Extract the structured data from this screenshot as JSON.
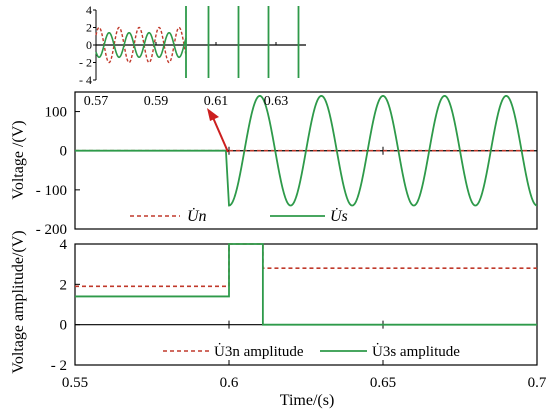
{
  "chart_data": [
    {
      "type": "line",
      "panel": "upper",
      "ylabel": "Voltage /(V)",
      "ylim": [
        -200,
        150
      ],
      "yticks": [
        "100",
        "0",
        "- 100",
        "- 200"
      ],
      "ytick_values": [
        100,
        0,
        -100,
        -200
      ],
      "xlim": [
        0.55,
        0.7
      ],
      "series": [
        {
          "name": "U̇n",
          "color": "#c0392b",
          "style": "dashed",
          "description_values": {
            "before_fault": 0,
            "after_fault": 0
          }
        },
        {
          "name": "U̇s",
          "color": "#2e9a4a",
          "style": "solid",
          "frequency_hz": 50,
          "amplitude_v": 140,
          "fault_time_s": 0.6,
          "value_before_fault": 0
        }
      ],
      "legend": [
        "U̇n",
        "U̇s"
      ],
      "legend_placement": "bottom"
    },
    {
      "type": "line",
      "panel": "lower",
      "ylabel": "Voltage amplitude/(V)",
      "xlabel": "Time/(s)",
      "xlim": [
        0.55,
        0.7
      ],
      "xticks": [
        "0.55",
        "0.6",
        "0.65",
        "0.7"
      ],
      "xtick_values": [
        0.55,
        0.6,
        0.65,
        0.7
      ],
      "ylim": [
        -2,
        4
      ],
      "yticks": [
        "4",
        "2",
        "0",
        "- 2"
      ],
      "ytick_values": [
        4,
        2,
        0,
        -2
      ],
      "series": [
        {
          "name": "U̇3n amplitude",
          "color": "#c0392b",
          "style": "dashed",
          "x": [
            0.55,
            0.6,
            0.6,
            0.611,
            0.611,
            0.7
          ],
          "y": [
            1.9,
            1.9,
            4.0,
            4.0,
            2.8,
            2.8
          ]
        },
        {
          "name": "U̇3s amplitude",
          "color": "#2e9a4a",
          "style": "solid",
          "x": [
            0.55,
            0.6,
            0.6,
            0.611,
            0.611,
            0.7
          ],
          "y": [
            1.4,
            1.4,
            4.0,
            4.0,
            0.0,
            0.0
          ]
        }
      ],
      "legend": [
        "U̇3n amplitude",
        "U̇3s amplitude"
      ],
      "legend_placement": "bottom"
    },
    {
      "type": "line",
      "panel": "inset",
      "xlim": [
        0.57,
        0.64
      ],
      "xticks": [
        "0.57",
        "0.59",
        "0.61",
        "0.63"
      ],
      "xtick_values": [
        0.57,
        0.59,
        0.61,
        0.63
      ],
      "ylim": [
        -4,
        4
      ],
      "yticks": [
        "4",
        "2",
        "0",
        "- 2",
        "- 4"
      ],
      "ytick_values": [
        4,
        2,
        0,
        -2,
        -4
      ],
      "series": [
        {
          "name": "U̇n",
          "color": "#c0392b",
          "style": "dashed",
          "frequency_hz": 150,
          "amplitude_v": 2,
          "end_time_s": 0.6
        },
        {
          "name": "U̇s",
          "color": "#2e9a4a",
          "style": "solid",
          "frequency_hz": 150,
          "amplitude_v": 1.4,
          "end_time_s": 0.6,
          "vertical_spikes_x": [
            0.6,
            0.6075,
            0.6175,
            0.6275,
            0.6375
          ]
        }
      ]
    }
  ]
}
